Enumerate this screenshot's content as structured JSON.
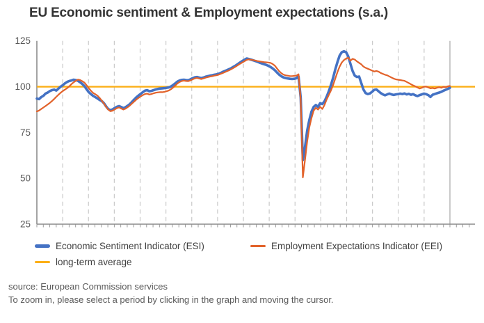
{
  "title": "EU Economic sentiment & Employment expectations (s.a.)",
  "legend": {
    "items": [
      {
        "label": "Economic Sentiment Indicator (ESI)",
        "color": "#4472c4",
        "thickness": 5
      },
      {
        "label": "Employment Expectations Indicator (EEI)",
        "color": "#e2622a",
        "thickness": 3
      },
      {
        "label": "long-term average",
        "color": "#fcaf17",
        "thickness": 3
      }
    ]
  },
  "footer": {
    "source": "source: European Commission services",
    "hint": "To zoom in, please select a period by clicking in the graph and moving the cursor."
  },
  "chart_data": {
    "type": "line",
    "title": "EU Economic sentiment & Employment expectations (s.a.)",
    "ylim": [
      25,
      125
    ],
    "y_ticks": [
      125,
      100,
      75,
      50,
      25
    ],
    "x_axis": {
      "tick_labels_visible": false,
      "major_gridlines": 16,
      "gridline_style": "vertical dashed, yearly; last gridline solid",
      "minor_ticks_per_gridline": 4
    },
    "grid_color": "#c9c9c9",
    "axis_color": "#8c8c8c",
    "reference_line": {
      "label": "long-term average",
      "value": 100,
      "color": "#fcaf17"
    },
    "series": [
      {
        "name": "Economic Sentiment Indicator (ESI)",
        "color": "#4472c4",
        "width": 3.6,
        "values": [
          93.5,
          93.2,
          94.3,
          95.0,
          96.2,
          96.8,
          97.6,
          98.1,
          98.4,
          97.9,
          99.0,
          100.0,
          100.8,
          101.8,
          102.6,
          103.1,
          103.4,
          103.8,
          103.6,
          103.2,
          102.4,
          101.5,
          100.3,
          98.6,
          97.0,
          96.0,
          95.0,
          94.3,
          93.6,
          92.8,
          92.2,
          91.0,
          89.3,
          87.8,
          87.2,
          87.6,
          88.4,
          89.0,
          89.4,
          88.9,
          88.3,
          88.8,
          89.6,
          90.5,
          91.7,
          93.0,
          94.2,
          95.2,
          96.1,
          97.0,
          97.8,
          98.1,
          97.5,
          97.7,
          98.1,
          98.5,
          98.8,
          99.0,
          99.1,
          99.2,
          99.4,
          99.6,
          100.1,
          100.9,
          101.8,
          102.8,
          103.4,
          103.7,
          103.8,
          103.6,
          103.5,
          104.0,
          104.6,
          105.1,
          105.3,
          105.0,
          104.7,
          105.0,
          105.4,
          105.7,
          106.0,
          106.2,
          106.5,
          106.7,
          107.0,
          107.5,
          108.1,
          108.6,
          109.1,
          109.6,
          110.2,
          110.9,
          111.6,
          112.4,
          113.2,
          114.0,
          114.7,
          115.4,
          115.1,
          114.8,
          114.4,
          114.0,
          113.6,
          113.1,
          112.7,
          112.3,
          111.9,
          111.4,
          110.8,
          110.0,
          109.0,
          107.8,
          106.6,
          105.7,
          105.1,
          104.7,
          104.5,
          104.3,
          104.2,
          104.3,
          104.6,
          105.6,
          94.0,
          60.0,
          67.0,
          76.0,
          82.0,
          86.5,
          89.0,
          90.0,
          89.0,
          91.0,
          90.5,
          92.0,
          94.5,
          97.5,
          101.0,
          105.0,
          109.5,
          113.5,
          117.0,
          118.8,
          119.3,
          118.8,
          116.5,
          112.5,
          108.5,
          106.0,
          105.3,
          105.5,
          102.0,
          98.5,
          96.5,
          96.0,
          96.3,
          97.2,
          98.3,
          98.5,
          97.5,
          96.5,
          95.8,
          95.3,
          95.8,
          96.2,
          95.8,
          95.5,
          95.8,
          96.0,
          96.2,
          96.0,
          96.3,
          95.8,
          96.1,
          95.6,
          95.9,
          95.3,
          94.9,
          95.4,
          95.8,
          96.2,
          95.9,
          95.4,
          94.4,
          95.6,
          96.0,
          96.4,
          96.8,
          97.2,
          97.8,
          98.3,
          98.8,
          99.4
        ]
      },
      {
        "name": "Employment Expectations Indicator (EEI)",
        "color": "#e2622a",
        "width": 2.2,
        "values": [
          86.5,
          87.0,
          87.8,
          88.6,
          89.4,
          90.3,
          91.2,
          92.2,
          93.3,
          94.5,
          95.6,
          96.7,
          97.6,
          98.4,
          99.2,
          100.2,
          101.4,
          102.4,
          103.2,
          103.9,
          103.6,
          103.0,
          102.2,
          100.8,
          99.2,
          97.8,
          96.6,
          95.9,
          95.1,
          93.9,
          92.4,
          90.8,
          89.0,
          87.5,
          86.6,
          86.9,
          87.6,
          88.3,
          88.7,
          88.1,
          87.5,
          88.0,
          88.8,
          89.7,
          90.8,
          91.9,
          93.0,
          93.9,
          94.7,
          95.4,
          96.0,
          96.2,
          95.7,
          96.0,
          96.4,
          96.7,
          96.9,
          97.0,
          97.0,
          97.2,
          97.5,
          97.9,
          98.6,
          99.5,
          100.6,
          101.7,
          102.6,
          103.1,
          103.3,
          103.1,
          103.0,
          103.4,
          104.0,
          104.5,
          104.8,
          104.5,
          104.2,
          104.5,
          104.9,
          105.2,
          105.5,
          105.7,
          106.0,
          106.2,
          106.5,
          107.0,
          107.5,
          108.0,
          108.5,
          109.0,
          109.6,
          110.3,
          111.0,
          111.8,
          112.5,
          113.2,
          113.9,
          114.6,
          114.9,
          114.7,
          114.5,
          114.3,
          114.0,
          113.8,
          113.6,
          113.4,
          113.3,
          113.2,
          113.0,
          112.4,
          111.5,
          110.0,
          108.5,
          107.4,
          106.6,
          106.2,
          106.0,
          105.8,
          105.8,
          105.9,
          106.0,
          106.8,
          93.0,
          50.5,
          60.0,
          70.0,
          78.0,
          83.0,
          87.0,
          88.5,
          87.5,
          89.0,
          87.8,
          90.0,
          93.0,
          95.5,
          98.0,
          101.0,
          104.5,
          108.0,
          111.0,
          113.2,
          114.5,
          115.3,
          115.8,
          114.2,
          115.2,
          114.8,
          113.8,
          113.0,
          112.2,
          111.0,
          110.3,
          109.8,
          109.3,
          108.8,
          108.3,
          108.6,
          108.2,
          107.5,
          107.0,
          106.5,
          106.2,
          105.6,
          105.0,
          104.4,
          104.0,
          103.8,
          103.6,
          103.4,
          103.2,
          102.6,
          102.0,
          101.3,
          100.7,
          100.2,
          99.6,
          99.0,
          99.4,
          100.0,
          100.1,
          99.6,
          99.1,
          99.3,
          99.0,
          99.4,
          99.7,
          99.4,
          99.9,
          99.7,
          100.2,
          100.4
        ]
      }
    ]
  }
}
